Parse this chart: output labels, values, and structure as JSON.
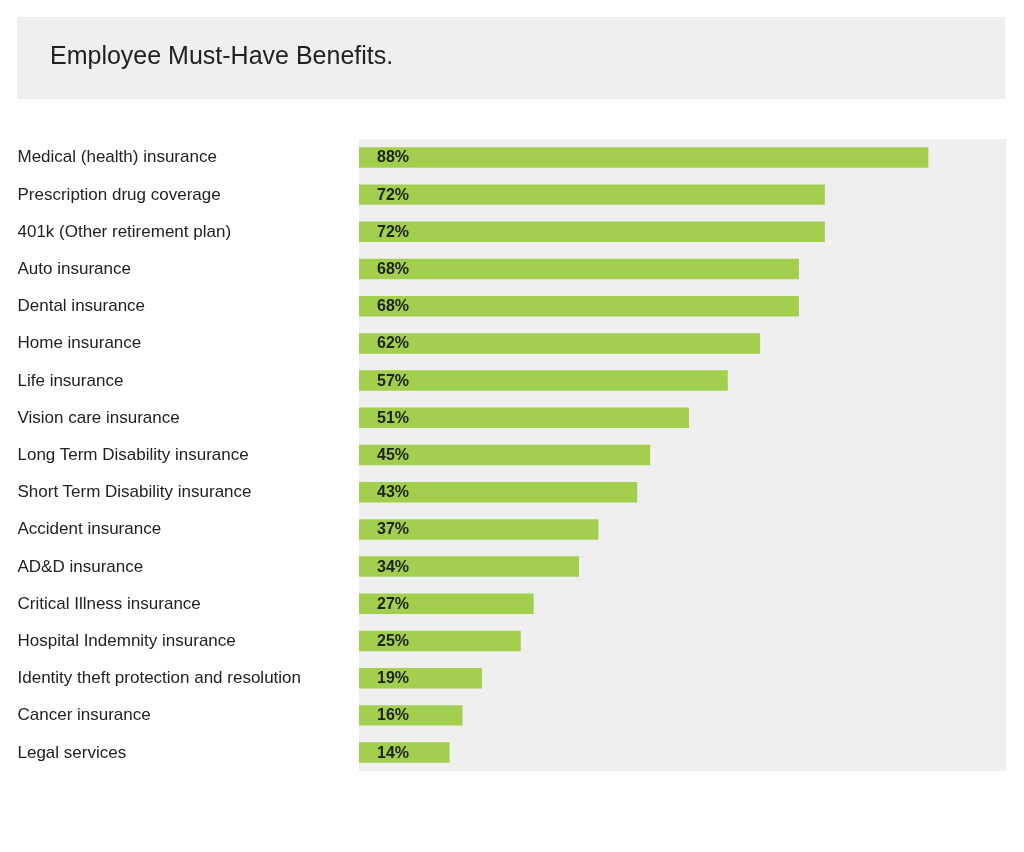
{
  "chart_data": {
    "type": "bar",
    "orientation": "horizontal",
    "title": "Employee Must-Have Benefits.",
    "categories": [
      "Medical (health) insurance",
      "Prescription drug coverage",
      "401k (Other retirement plan)",
      "Auto insurance",
      "Dental insurance",
      "Home insurance",
      "Life insurance",
      "Vision care insurance",
      "Long Term Disability insurance",
      "Short Term Disability insurance",
      "Accident insurance",
      "AD&D insurance",
      "Critical Illness insurance",
      "Hospital Indemnity insurance",
      "Identity theft protection and resolution",
      "Cancer insurance",
      "Legal services"
    ],
    "values": [
      88,
      72,
      72,
      68,
      68,
      62,
      57,
      51,
      45,
      43,
      37,
      34,
      27,
      25,
      19,
      16,
      14
    ],
    "value_labels": [
      "88%",
      "72%",
      "72%",
      "68%",
      "68%",
      "62%",
      "57%",
      "51%",
      "45%",
      "43%",
      "37%",
      "34%",
      "27%",
      "25%",
      "19%",
      "16%",
      "14%"
    ],
    "color": "#a3cf4f",
    "xlim": [
      0,
      100
    ],
    "bands": [
      {
        "axis": "x",
        "from": 0,
        "to": 100,
        "color": "#efefef"
      }
    ],
    "tick_labels": "y"
  }
}
